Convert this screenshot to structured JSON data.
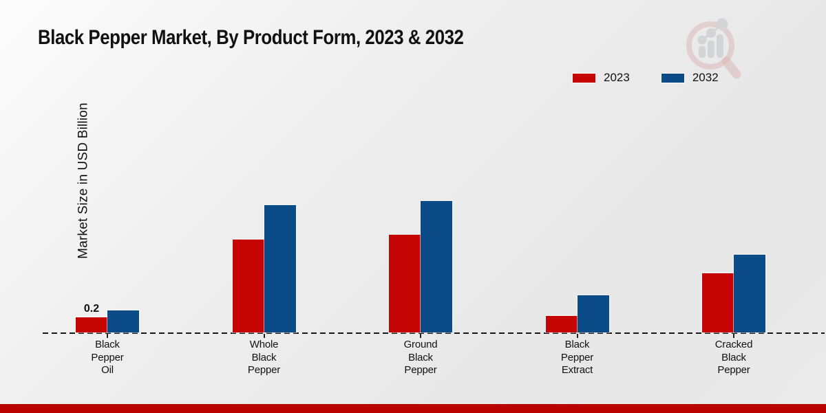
{
  "title": "Black Pepper Market, By Product Form, 2023 & 2032",
  "ylabel": "Market Size in USD Billion",
  "legend": [
    {
      "label": "2023",
      "color": "#c50404"
    },
    {
      "label": "2032",
      "color": "#0b4b88"
    }
  ],
  "colors": {
    "bar_2023": "#c50404",
    "bar_2032": "#0b4b88",
    "footer": "#b80300",
    "baseline": "#161616",
    "background_light": "#fcfcfc",
    "background_dark": "#e7e7e7",
    "logo_ring": "#cf8f8f",
    "logo_bars": "#c2c3c7"
  },
  "logo_name": "market-research-future-logo",
  "chart_data": {
    "type": "bar",
    "title": "Black Pepper Market, By Product Form, 2023 & 2032",
    "xlabel": "",
    "ylabel": "Market Size in USD Billion",
    "categories": [
      "Black Pepper Oil",
      "Whole Black Pepper",
      "Ground Black Pepper",
      "Black Pepper Extract",
      "Cracked Black Pepper"
    ],
    "category_lines": [
      [
        "Black",
        "Pepper",
        "Oil"
      ],
      [
        "Whole",
        "Black",
        "Pepper"
      ],
      [
        "Ground",
        "Black",
        "Pepper"
      ],
      [
        "Black",
        "Pepper",
        "Extract"
      ],
      [
        "Cracked",
        "Black",
        "Pepper"
      ]
    ],
    "series": [
      {
        "name": "2023",
        "color": "#c50404",
        "values": [
          0.2,
          1.26,
          1.32,
          0.22,
          0.8
        ]
      },
      {
        "name": "2032",
        "color": "#0b4b88",
        "values": [
          0.3,
          1.72,
          1.78,
          0.5,
          1.05
        ]
      }
    ],
    "annotations": [
      {
        "category": "Black Pepper Oil",
        "series": "2023",
        "text": "0.2"
      }
    ],
    "ylim": [
      0,
      2.2
    ],
    "grid": false,
    "axis_ticks_visible": false,
    "legend_position": "top-right",
    "baseline_style": "dashed"
  }
}
